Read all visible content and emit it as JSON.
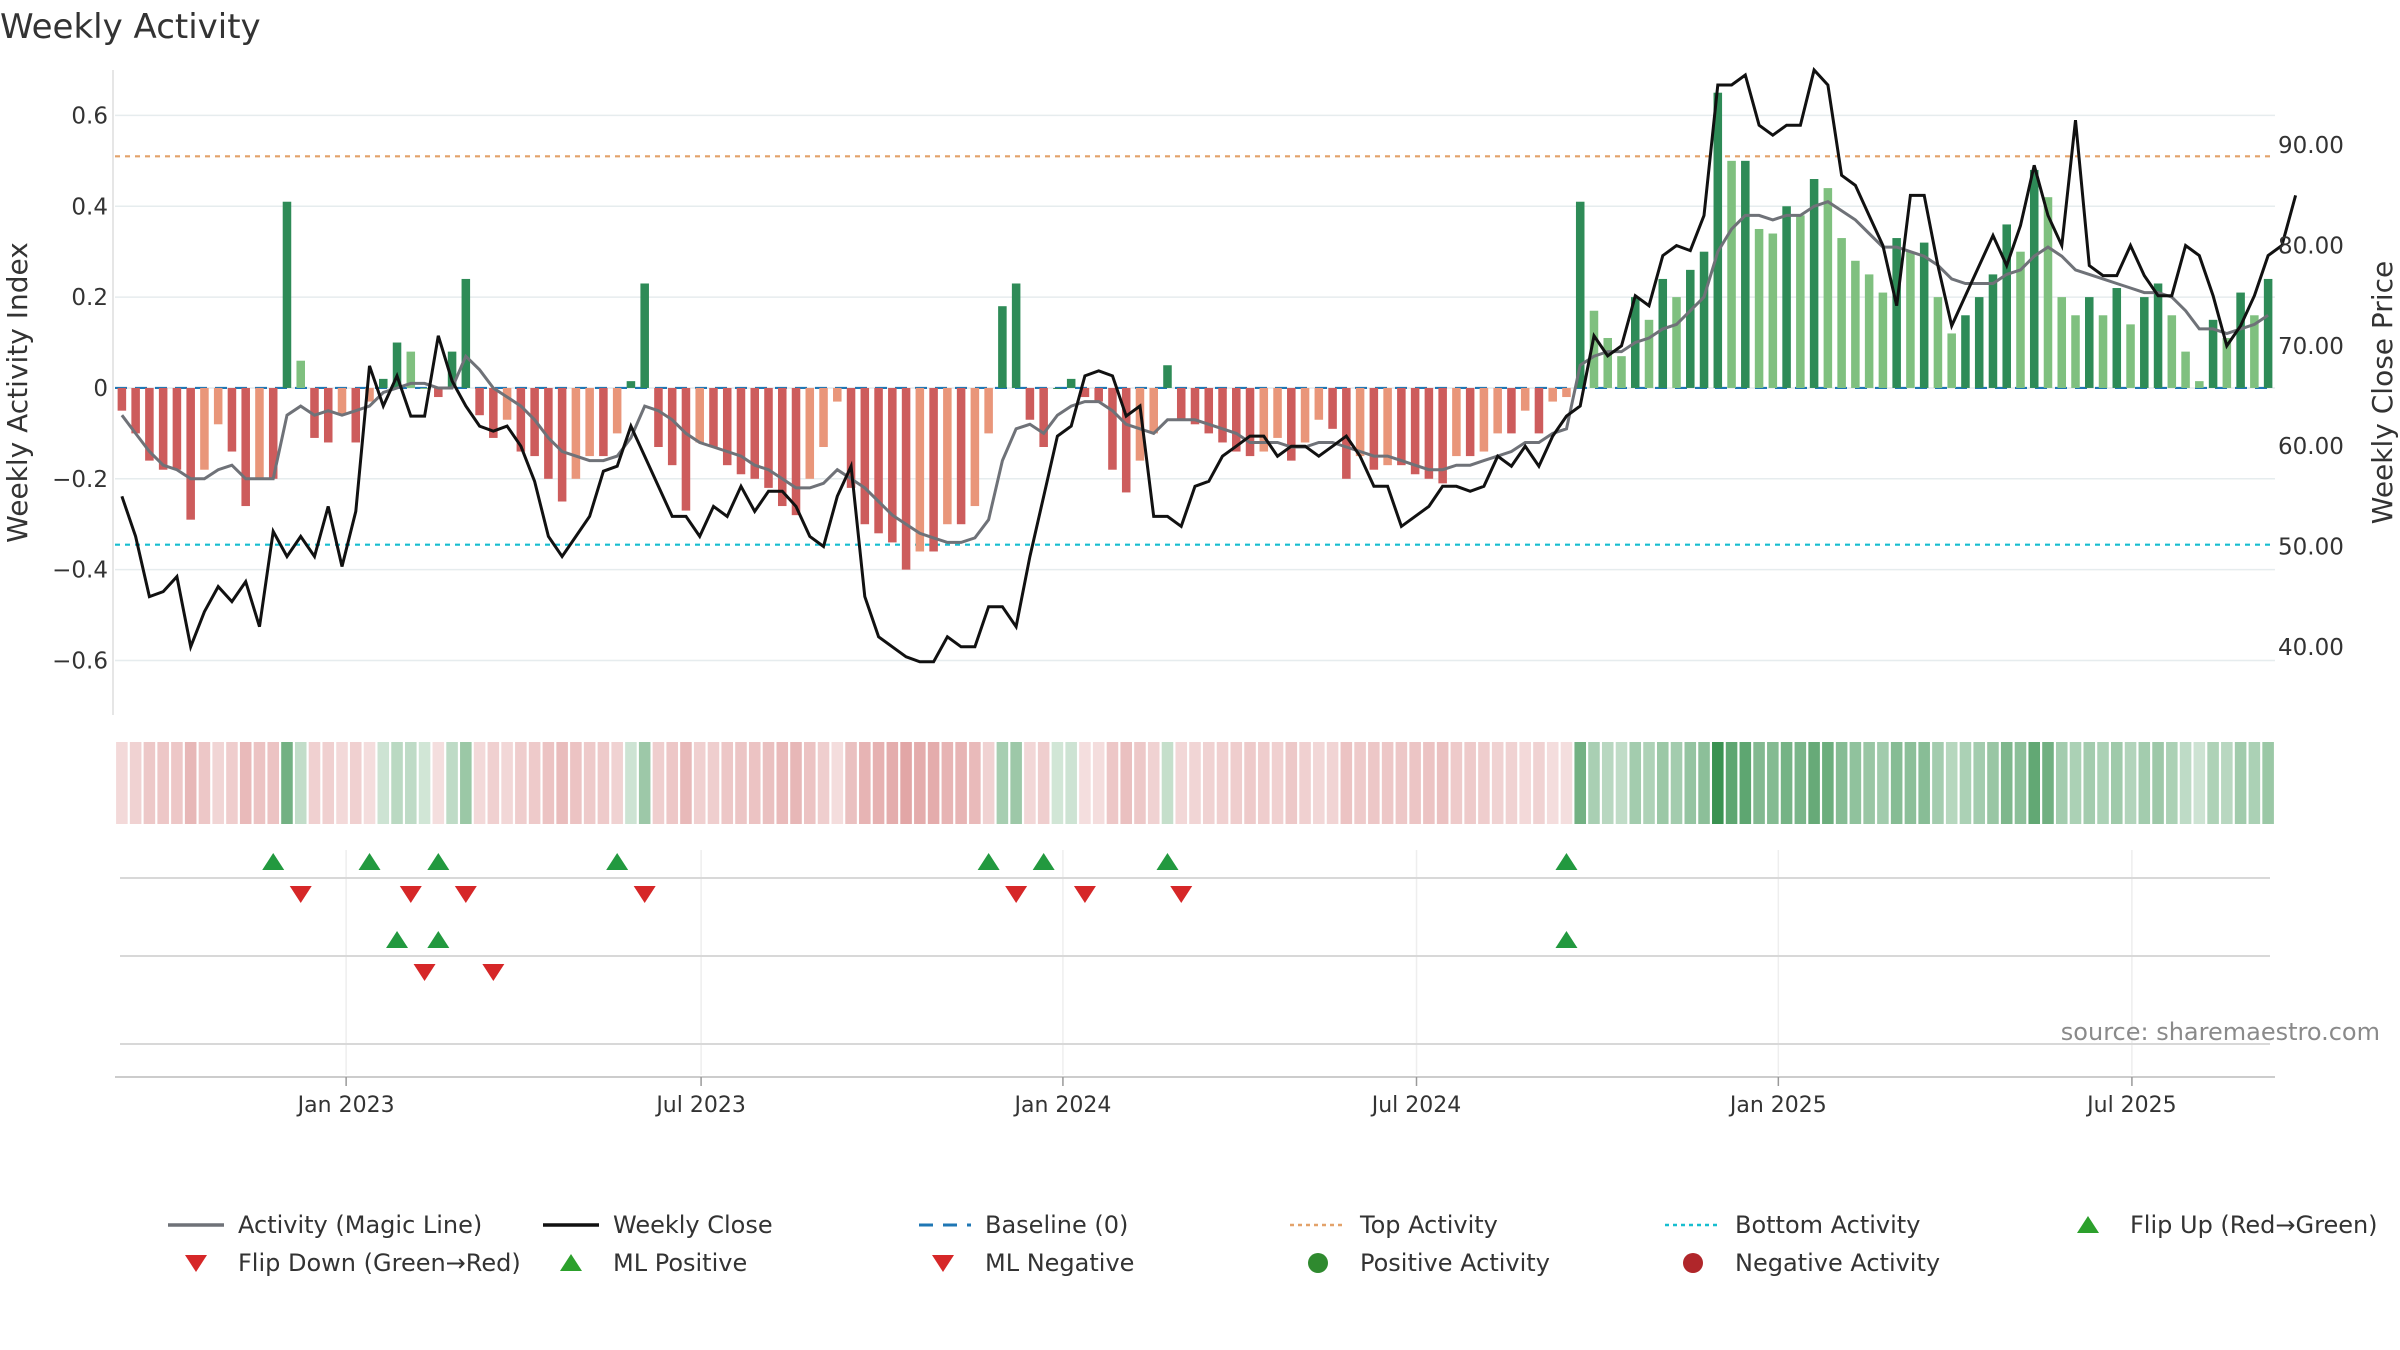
{
  "chart_data": {
    "type": "bar",
    "title": "Weekly Activity",
    "ylabel": "Weekly Activity Index",
    "y2label": "Weekly Close Price",
    "ylim": [
      -0.72,
      0.7
    ],
    "y2lim": [
      33.2,
      97.5
    ],
    "yticks": [
      0.6,
      0.4,
      0.2,
      0,
      -0.2,
      -0.4,
      -0.6
    ],
    "ytick_labels": [
      "0.6",
      "0.4",
      "0.2",
      "0",
      "−0.2",
      "−0.4",
      "−0.6"
    ],
    "y2ticks": [
      90,
      80,
      70,
      60,
      50,
      40
    ],
    "y2tick_labels": [
      "90.00",
      "80.00",
      "70.00",
      "60.00",
      "50.00",
      "40.00"
    ],
    "x_start": "2022-09-12",
    "x_ticks": [
      {
        "label": "Jan 2023",
        "week": 16.3
      },
      {
        "label": "Jul 2023",
        "week": 42.1
      },
      {
        "label": "Jan 2024",
        "week": 68.4
      },
      {
        "label": "Jul 2024",
        "week": 94.1
      },
      {
        "label": "Jan 2025",
        "week": 120.4
      },
      {
        "label": "Jul 2025",
        "week": 146.1
      }
    ],
    "top_activity": 0.51,
    "bottom_activity": -0.345,
    "activity_index": [
      -0.05,
      -0.1,
      -0.16,
      -0.18,
      -0.18,
      -0.29,
      -0.18,
      -0.08,
      -0.14,
      -0.26,
      -0.2,
      -0.2,
      0.41,
      0.06,
      -0.11,
      -0.12,
      -0.06,
      -0.12,
      -0.03,
      0.02,
      0.1,
      0.08,
      0.0,
      -0.02,
      0.08,
      0.24,
      -0.06,
      -0.11,
      -0.07,
      -0.14,
      -0.15,
      -0.2,
      -0.25,
      -0.2,
      -0.15,
      -0.15,
      -0.1,
      0.015,
      0.23,
      -0.13,
      -0.17,
      -0.27,
      -0.12,
      -0.13,
      -0.17,
      -0.19,
      -0.2,
      -0.22,
      -0.26,
      -0.28,
      -0.2,
      -0.13,
      -0.03,
      -0.22,
      -0.3,
      -0.32,
      -0.34,
      -0.4,
      -0.36,
      -0.36,
      -0.3,
      -0.3,
      -0.26,
      -0.1,
      0.18,
      0.23,
      -0.07,
      -0.13,
      0.0,
      0.02,
      -0.02,
      -0.03,
      -0.18,
      -0.23,
      -0.16,
      -0.1,
      0.05,
      -0.07,
      -0.08,
      -0.1,
      -0.12,
      -0.14,
      -0.15,
      -0.14,
      -0.11,
      -0.16,
      -0.12,
      -0.07,
      -0.09,
      -0.2,
      -0.15,
      -0.18,
      -0.17,
      -0.17,
      -0.19,
      -0.2,
      -0.21,
      -0.15,
      -0.15,
      -0.14,
      -0.1,
      -0.1,
      -0.05,
      -0.1,
      -0.03,
      -0.02,
      0.41,
      0.17,
      0.11,
      0.07,
      0.2,
      0.15,
      0.24,
      0.2,
      0.26,
      0.3,
      0.65,
      0.5,
      0.5,
      0.35,
      0.34,
      0.4,
      0.38,
      0.46,
      0.44,
      0.33,
      0.28,
      0.25,
      0.21,
      0.33,
      0.3,
      0.32,
      0.2,
      0.12,
      0.16,
      0.2,
      0.25,
      0.36,
      0.3,
      0.48,
      0.42,
      0.2,
      0.16,
      0.2,
      0.16,
      0.22,
      0.14,
      0.2,
      0.23,
      0.16,
      0.08,
      0.015,
      0.15,
      0.11,
      0.21,
      0.16,
      0.24
    ],
    "weekly_close": [
      55,
      51,
      45,
      45.5,
      47,
      40,
      43.5,
      46,
      44.5,
      46.5,
      42,
      51.5,
      49,
      51,
      49,
      54,
      48,
      53.5,
      68,
      64,
      67,
      63,
      63,
      71,
      66.5,
      64,
      62,
      61.5,
      62,
      60,
      56.5,
      51,
      49,
      51,
      53,
      57.5,
      58,
      62,
      59,
      56,
      53,
      53,
      51,
      54,
      53,
      56,
      53.5,
      55.5,
      55.5,
      54,
      51,
      50,
      55,
      58,
      45,
      41,
      40,
      39,
      38.5,
      38.5,
      41,
      40,
      40,
      44,
      44,
      42,
      49,
      55,
      61,
      62,
      67,
      67.5,
      67,
      63,
      64,
      53,
      53,
      52,
      56,
      56.5,
      59,
      60,
      61,
      61,
      59,
      60,
      60,
      59,
      60,
      61,
      59,
      56,
      56,
      52,
      53,
      54,
      56,
      56,
      55.5,
      56,
      59,
      58,
      60,
      58,
      61,
      63,
      64,
      71,
      69,
      70,
      75,
      74,
      79,
      80,
      79.5,
      83,
      96,
      96,
      97,
      92,
      91,
      92,
      92,
      97.5,
      96,
      87,
      86,
      83,
      80,
      74,
      85,
      85,
      78,
      72,
      75,
      78,
      81,
      78,
      82,
      88,
      83,
      80,
      92.5,
      78,
      77,
      77,
      80,
      77,
      75,
      75,
      80,
      79,
      75,
      70,
      72,
      75,
      79,
      80,
      85
    ],
    "magic_line": [
      -0.06,
      -0.1,
      -0.14,
      -0.17,
      -0.18,
      -0.2,
      -0.2,
      -0.18,
      -0.17,
      -0.2,
      -0.2,
      -0.2,
      -0.06,
      -0.04,
      -0.06,
      -0.05,
      -0.06,
      -0.05,
      -0.04,
      -0.01,
      0.0,
      0.01,
      0.01,
      0.0,
      0.0,
      0.07,
      0.04,
      0.0,
      -0.02,
      -0.04,
      -0.07,
      -0.11,
      -0.14,
      -0.15,
      -0.16,
      -0.16,
      -0.15,
      -0.11,
      -0.04,
      -0.05,
      -0.07,
      -0.1,
      -0.12,
      -0.13,
      -0.14,
      -0.15,
      -0.17,
      -0.18,
      -0.2,
      -0.22,
      -0.22,
      -0.21,
      -0.18,
      -0.2,
      -0.22,
      -0.25,
      -0.28,
      -0.3,
      -0.32,
      -0.33,
      -0.34,
      -0.34,
      -0.33,
      -0.29,
      -0.16,
      -0.09,
      -0.08,
      -0.1,
      -0.06,
      -0.04,
      -0.03,
      -0.03,
      -0.05,
      -0.08,
      -0.09,
      -0.1,
      -0.07,
      -0.07,
      -0.07,
      -0.08,
      -0.09,
      -0.1,
      -0.12,
      -0.12,
      -0.12,
      -0.13,
      -0.13,
      -0.12,
      -0.12,
      -0.13,
      -0.14,
      -0.15,
      -0.15,
      -0.16,
      -0.17,
      -0.18,
      -0.18,
      -0.17,
      -0.17,
      -0.16,
      -0.15,
      -0.14,
      -0.12,
      -0.12,
      -0.1,
      -0.09,
      0.05,
      0.07,
      0.08,
      0.08,
      0.1,
      0.11,
      0.13,
      0.14,
      0.17,
      0.2,
      0.3,
      0.35,
      0.38,
      0.38,
      0.37,
      0.38,
      0.38,
      0.4,
      0.41,
      0.39,
      0.37,
      0.34,
      0.31,
      0.31,
      0.3,
      0.29,
      0.27,
      0.24,
      0.23,
      0.23,
      0.23,
      0.25,
      0.26,
      0.29,
      0.31,
      0.29,
      0.26,
      0.25,
      0.24,
      0.23,
      0.22,
      0.21,
      0.21,
      0.2,
      0.17,
      0.13,
      0.13,
      0.12,
      0.13,
      0.14,
      0.16
    ],
    "flip_up_weeks": [
      11,
      18,
      23,
      36,
      63,
      67,
      76,
      105
    ],
    "flip_down_weeks": [
      13,
      21,
      25,
      38,
      65,
      70,
      77
    ],
    "ml_positive_weeks": [
      20,
      23,
      105
    ],
    "ml_negative_weeks": [
      22,
      27
    ],
    "source": "source: sharemaestro.com",
    "legend": [
      {
        "label": "Activity (Magic Line)",
        "symbol": "line",
        "color": "#6f7278"
      },
      {
        "label": "Weekly Close",
        "symbol": "line",
        "color": "#111111"
      },
      {
        "label": "Baseline (0)",
        "symbol": "dashed",
        "color": "#1f77b4"
      },
      {
        "label": "Top Activity",
        "symbol": "dotted",
        "color": "#e3a26a"
      },
      {
        "label": "Bottom Activity",
        "symbol": "dotted",
        "color": "#17becf"
      },
      {
        "label": "Flip Up (Red→Green)",
        "symbol": "triangle-up",
        "color": "#2ca02c"
      },
      {
        "label": "Flip Down (Green→Red)",
        "symbol": "triangle-down",
        "color": "#d62728"
      },
      {
        "label": "ML Positive",
        "symbol": "triangle-up",
        "color": "#2ca02c"
      },
      {
        "label": "ML Negative",
        "symbol": "triangle-down",
        "color": "#d62728"
      },
      {
        "label": "Positive Activity",
        "symbol": "circle",
        "color": "#2f8a2f"
      },
      {
        "label": "Negative Activity",
        "symbol": "circle",
        "color": "#b0262a"
      }
    ],
    "colors": {
      "strong_green": "#2e8b57",
      "light_green": "#7fc07f",
      "strong_red": "#cd5c5c",
      "light_red": "#e9967a",
      "baseline": "#1f77b4",
      "top": "#e3a26a",
      "bottom": "#17becf",
      "magic": "#6f7278",
      "close": "#111111",
      "marker_up": "#22993f",
      "marker_down": "#d62728"
    }
  }
}
